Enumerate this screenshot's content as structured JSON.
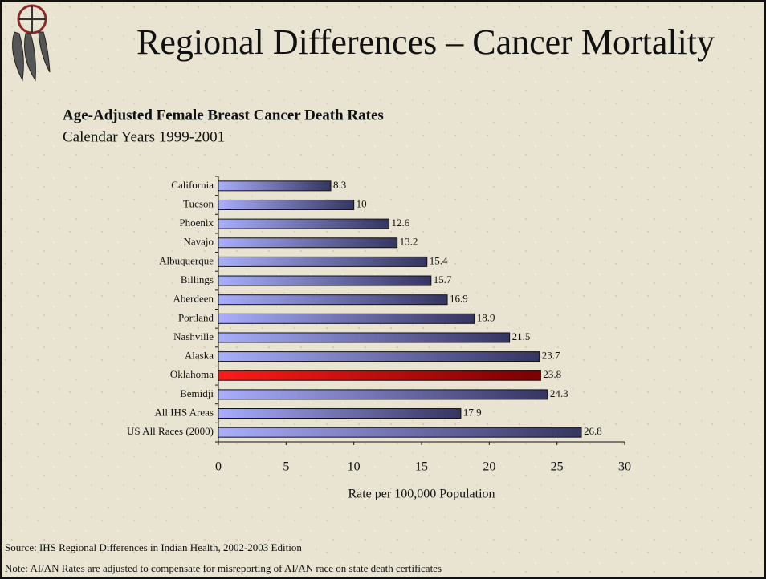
{
  "slide": {
    "title": "Regional Differences – Cancer Mortality",
    "source": "Source: IHS Regional Differences in Indian Health, 2002-2003 Edition",
    "note": "Note: AI/AN Rates are adjusted to compensate for misreporting of AI/AN race on state death certificates"
  },
  "chart_data": {
    "type": "hbar",
    "title": "Age-Adjusted Female Breast Cancer Death Rates",
    "subtitle": "Calendar Years 1999-2001",
    "xlabel": "Rate per 100,000 Population",
    "categories": [
      "California",
      "Tucson",
      "Phoenix",
      "Navajo",
      "Albuquerque",
      "Billings",
      "Aberdeen",
      "Portland",
      "Nashville",
      "Alaska",
      "Oklahoma",
      "Bemidji",
      "All IHS Areas",
      "US All Races (2000)"
    ],
    "values": [
      8.3,
      10,
      12.6,
      13.2,
      15.4,
      15.7,
      16.9,
      18.9,
      21.5,
      23.7,
      23.8,
      24.3,
      17.9,
      26.8
    ],
    "colors": [
      [
        "#a9aefc",
        "#353560"
      ],
      [
        "#a9aefc",
        "#353560"
      ],
      [
        "#a9aefc",
        "#353560"
      ],
      [
        "#a9aefc",
        "#353560"
      ],
      [
        "#a9aefc",
        "#353560"
      ],
      [
        "#a9aefc",
        "#353560"
      ],
      [
        "#a9aefc",
        "#353560"
      ],
      [
        "#a9aefc",
        "#353560"
      ],
      [
        "#a9aefc",
        "#353560"
      ],
      [
        "#a9aefc",
        "#353560"
      ],
      [
        "#ff1a1a",
        "#7a0000"
      ],
      [
        "#a9aefc",
        "#353560"
      ],
      [
        "#a9aefc",
        "#353560"
      ],
      [
        "#a9aefc",
        "#353560"
      ]
    ],
    "xlim": [
      0,
      30
    ],
    "xticks": [
      0,
      5,
      10,
      15,
      20,
      25,
      30
    ]
  }
}
